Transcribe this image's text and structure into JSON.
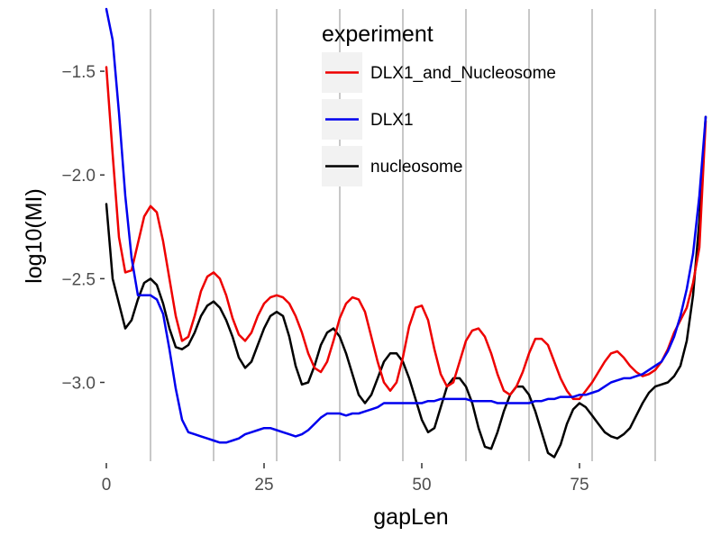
{
  "chart_data": {
    "type": "line",
    "title": "",
    "xlabel": "gapLen",
    "ylabel": "log10(MI)",
    "xlim": [
      0,
      95
    ],
    "ylim": [
      -3.38,
      -1.2
    ],
    "x_ticks": [
      0,
      25,
      50,
      75
    ],
    "x_tick_labels": [
      "0",
      "25",
      "50",
      "75"
    ],
    "y_ticks": [
      -3.0,
      -2.5,
      -2.0,
      -1.5
    ],
    "y_tick_labels": [
      "−3.0",
      "−2.5",
      "−2.0",
      "−1.5"
    ],
    "vlines": [
      7,
      17,
      27,
      37,
      47,
      57,
      67,
      77,
      87
    ],
    "background": "#ffffff",
    "vline_color": "#c8c8c8",
    "legend": {
      "title": "experiment",
      "position": "top-right"
    },
    "x": [
      0,
      1,
      2,
      3,
      4,
      5,
      6,
      7,
      8,
      9,
      10,
      11,
      12,
      13,
      14,
      15,
      16,
      17,
      18,
      19,
      20,
      21,
      22,
      23,
      24,
      25,
      26,
      27,
      28,
      29,
      30,
      31,
      32,
      33,
      34,
      35,
      36,
      37,
      38,
      39,
      40,
      41,
      42,
      43,
      44,
      45,
      46,
      47,
      48,
      49,
      50,
      51,
      52,
      53,
      54,
      55,
      56,
      57,
      58,
      59,
      60,
      61,
      62,
      63,
      64,
      65,
      66,
      67,
      68,
      69,
      70,
      71,
      72,
      73,
      74,
      75,
      76,
      77,
      78,
      79,
      80,
      81,
      82,
      83,
      84,
      85,
      86,
      87,
      88,
      89,
      90,
      91,
      92,
      93,
      94,
      95
    ],
    "series": [
      {
        "name": "DLX1_and_Nucleosome",
        "color": "#ee0000",
        "values": [
          -1.48,
          -1.9,
          -2.3,
          -2.47,
          -2.46,
          -2.33,
          -2.2,
          -2.15,
          -2.18,
          -2.32,
          -2.5,
          -2.68,
          -2.8,
          -2.78,
          -2.68,
          -2.56,
          -2.49,
          -2.47,
          -2.5,
          -2.58,
          -2.69,
          -2.77,
          -2.8,
          -2.76,
          -2.68,
          -2.62,
          -2.59,
          -2.58,
          -2.59,
          -2.62,
          -2.68,
          -2.76,
          -2.86,
          -2.93,
          -2.95,
          -2.9,
          -2.8,
          -2.69,
          -2.62,
          -2.59,
          -2.6,
          -2.66,
          -2.78,
          -2.9,
          -3.0,
          -3.04,
          -3.0,
          -2.88,
          -2.73,
          -2.64,
          -2.63,
          -2.7,
          -2.84,
          -2.96,
          -3.02,
          -3.0,
          -2.9,
          -2.8,
          -2.75,
          -2.74,
          -2.78,
          -2.86,
          -2.96,
          -3.04,
          -3.06,
          -3.02,
          -2.95,
          -2.86,
          -2.79,
          -2.79,
          -2.82,
          -2.9,
          -2.98,
          -3.04,
          -3.08,
          -3.08,
          -3.04,
          -3.0,
          -2.95,
          -2.9,
          -2.86,
          -2.85,
          -2.88,
          -2.92,
          -2.95,
          -2.97,
          -2.96,
          -2.94,
          -2.9,
          -2.84,
          -2.76,
          -2.7,
          -2.64,
          -2.52,
          -2.35,
          -1.74
        ]
      },
      {
        "name": "DLX1",
        "color": "#0000ee",
        "values": [
          -1.2,
          -1.35,
          -1.7,
          -2.1,
          -2.4,
          -2.58,
          -2.58,
          -2.58,
          -2.6,
          -2.67,
          -2.84,
          -3.03,
          -3.18,
          -3.24,
          -3.25,
          -3.26,
          -3.27,
          -3.28,
          -3.29,
          -3.29,
          -3.28,
          -3.27,
          -3.25,
          -3.24,
          -3.23,
          -3.22,
          -3.22,
          -3.23,
          -3.24,
          -3.25,
          -3.26,
          -3.25,
          -3.23,
          -3.2,
          -3.17,
          -3.15,
          -3.15,
          -3.15,
          -3.16,
          -3.15,
          -3.15,
          -3.14,
          -3.13,
          -3.12,
          -3.1,
          -3.1,
          -3.1,
          -3.1,
          -3.1,
          -3.1,
          -3.1,
          -3.09,
          -3.09,
          -3.08,
          -3.08,
          -3.08,
          -3.08,
          -3.08,
          -3.09,
          -3.09,
          -3.09,
          -3.09,
          -3.1,
          -3.1,
          -3.1,
          -3.1,
          -3.1,
          -3.1,
          -3.09,
          -3.09,
          -3.08,
          -3.08,
          -3.07,
          -3.07,
          -3.07,
          -3.06,
          -3.06,
          -3.05,
          -3.04,
          -3.02,
          -3.0,
          -2.99,
          -2.98,
          -2.98,
          -2.97,
          -2.96,
          -2.94,
          -2.92,
          -2.9,
          -2.85,
          -2.78,
          -2.68,
          -2.55,
          -2.38,
          -2.1,
          -1.72
        ]
      },
      {
        "name": "nucleosome",
        "color": "#000000",
        "values": [
          -2.14,
          -2.5,
          -2.62,
          -2.74,
          -2.7,
          -2.6,
          -2.52,
          -2.5,
          -2.53,
          -2.62,
          -2.74,
          -2.83,
          -2.84,
          -2.82,
          -2.76,
          -2.68,
          -2.63,
          -2.61,
          -2.64,
          -2.7,
          -2.78,
          -2.88,
          -2.93,
          -2.9,
          -2.82,
          -2.74,
          -2.68,
          -2.66,
          -2.68,
          -2.78,
          -2.92,
          -3.01,
          -3.0,
          -2.92,
          -2.82,
          -2.76,
          -2.74,
          -2.78,
          -2.86,
          -2.96,
          -3.06,
          -3.1,
          -3.06,
          -2.98,
          -2.9,
          -2.86,
          -2.86,
          -2.9,
          -2.98,
          -3.08,
          -3.18,
          -3.24,
          -3.22,
          -3.12,
          -3.02,
          -2.98,
          -2.98,
          -3.02,
          -3.1,
          -3.22,
          -3.31,
          -3.32,
          -3.24,
          -3.14,
          -3.06,
          -3.02,
          -3.02,
          -3.06,
          -3.14,
          -3.24,
          -3.34,
          -3.36,
          -3.3,
          -3.2,
          -3.13,
          -3.1,
          -3.12,
          -3.16,
          -3.2,
          -3.24,
          -3.26,
          -3.27,
          -3.25,
          -3.22,
          -3.16,
          -3.1,
          -3.05,
          -3.02,
          -3.01,
          -3.0,
          -2.97,
          -2.92,
          -2.8,
          -2.58,
          -2.22,
          -1.72
        ]
      }
    ]
  }
}
